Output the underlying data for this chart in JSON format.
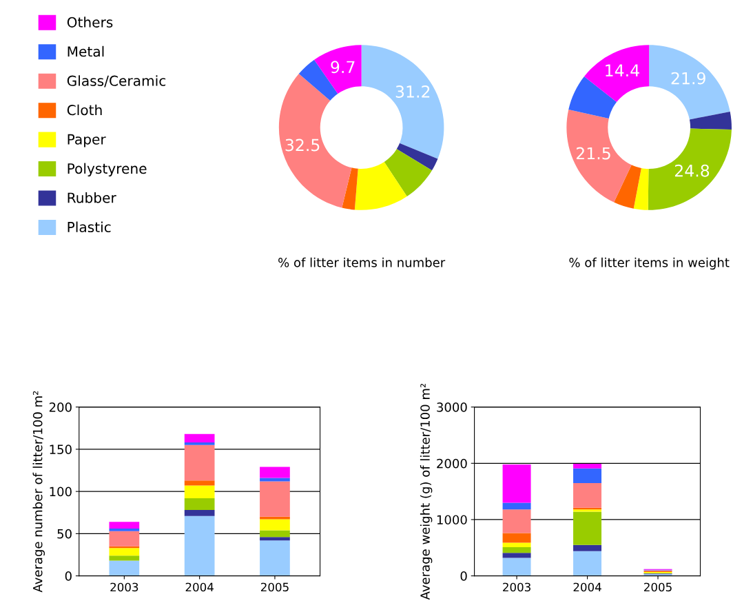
{
  "chart_data": [
    {
      "type": "donut",
      "title": "% of litter items in number",
      "legend": "left",
      "categories": [
        "Plastic",
        "Rubber",
        "Polystyrene",
        "Paper",
        "Cloth",
        "Glass/Ceramic",
        "Metal",
        "Others"
      ],
      "values": [
        31.2,
        2.5,
        7,
        10.6,
        2.5,
        32.5,
        4,
        9.7
      ],
      "colors": [
        "#99ccff",
        "#333399",
        "#99cc00",
        "#ffff00",
        "#ff6600",
        "#ff8080",
        "#3366ff",
        "#ff00ff"
      ],
      "value_labels": [
        "31.2",
        null,
        null,
        null,
        null,
        "32.5",
        null,
        "9.7"
      ]
    },
    {
      "type": "donut",
      "title": "% of litter items in weight",
      "categories": [
        null,
        null,
        null,
        null,
        null,
        null,
        null,
        null
      ],
      "values": [
        21.9,
        3.5,
        24.8,
        2.8,
        4,
        21.5,
        7.1,
        14.4
      ],
      "colors": [
        "#99ccff",
        "#333399",
        "#99cc00",
        "#ffff00",
        "#ff6600",
        "#ff8080",
        "#3366ff",
        "#ff00ff"
      ],
      "value_labels": [
        "21.9",
        null,
        "24.8",
        null,
        null,
        "21.5",
        null,
        "14.4"
      ]
    },
    {
      "type": "bar",
      "stacked": true,
      "ylabel": "Average number of litter/100 m²",
      "categories": [
        "2003",
        "2004",
        "2005"
      ],
      "ylim": [
        0,
        200
      ],
      "yticks": [
        0,
        50,
        100,
        150,
        200
      ],
      "grid": "y",
      "series": [
        {
          "color": "#99ccff",
          "values": [
            18,
            71,
            42
          ]
        },
        {
          "color": "#333399",
          "values": [
            0,
            7,
            4
          ]
        },
        {
          "color": "#99cc00",
          "values": [
            6,
            14,
            8
          ]
        },
        {
          "color": "#ffff00",
          "values": [
            9,
            15,
            13
          ]
        },
        {
          "color": "#ff6600",
          "values": [
            2,
            6,
            3
          ]
        },
        {
          "color": "#ff8080",
          "values": [
            18,
            42,
            42
          ]
        },
        {
          "color": "#3366ff",
          "values": [
            3,
            3,
            4
          ]
        },
        {
          "color": "#ff00ff",
          "values": [
            8,
            10,
            13
          ]
        }
      ]
    },
    {
      "type": "bar",
      "stacked": true,
      "ylabel": "Average weight (g) of litter/100 m²",
      "categories": [
        "2003",
        "2004",
        "2005"
      ],
      "ylim": [
        0,
        3000
      ],
      "yticks": [
        0,
        1000,
        2000,
        3000
      ],
      "grid": "y",
      "series": [
        {
          "color": "#99ccff",
          "values": [
            320,
            440,
            30
          ]
        },
        {
          "color": "#333399",
          "values": [
            90,
            110,
            10
          ]
        },
        {
          "color": "#99cc00",
          "values": [
            100,
            590,
            10
          ]
        },
        {
          "color": "#ffff00",
          "values": [
            80,
            40,
            20
          ]
        },
        {
          "color": "#ff6600",
          "values": [
            170,
            30,
            10
          ]
        },
        {
          "color": "#ff8080",
          "values": [
            420,
            440,
            20
          ]
        },
        {
          "color": "#3366ff",
          "values": [
            120,
            260,
            10
          ]
        },
        {
          "color": "#ff00ff",
          "values": [
            680,
            80,
            10
          ]
        }
      ]
    }
  ]
}
